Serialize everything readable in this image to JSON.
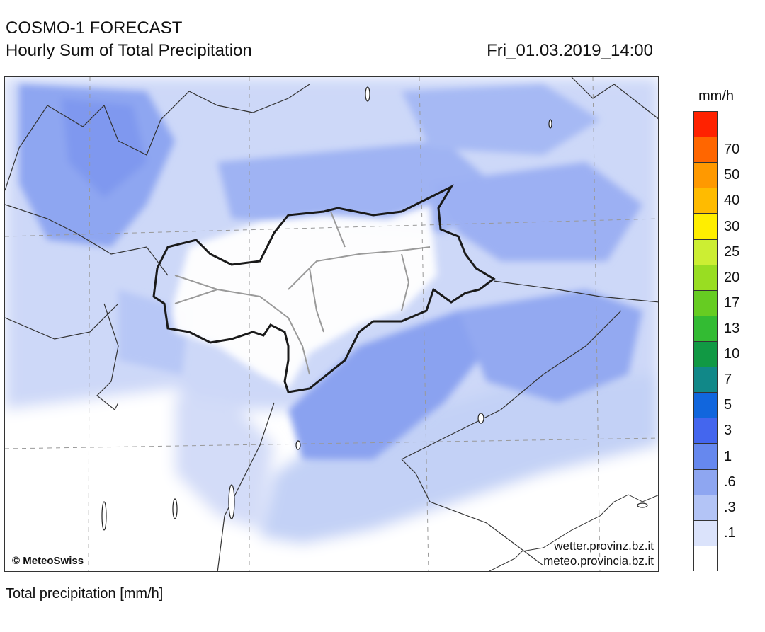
{
  "header": {
    "model_title": "COSMO-1 FORECAST",
    "product_title": "Hourly Sum of Total Precipitation",
    "valid_time": "Fri_01.03.2019_14:00"
  },
  "map": {
    "credit": "© MeteoSwiss",
    "source_line1": "wetter.provinz.bz.it",
    "source_line2": "meteo.provincia.bz.it"
  },
  "legend": {
    "unit": "mm/h",
    "classes": [
      {
        "label": "",
        "color": "#ff2200"
      },
      {
        "label": "70",
        "color": "#ff6600"
      },
      {
        "label": "50",
        "color": "#ff9900"
      },
      {
        "label": "40",
        "color": "#ffbb00"
      },
      {
        "label": "30",
        "color": "#ffee00"
      },
      {
        "label": "25",
        "color": "#ccee33"
      },
      {
        "label": "20",
        "color": "#99dd22"
      },
      {
        "label": "17",
        "color": "#66cc22"
      },
      {
        "label": "13",
        "color": "#33bb33"
      },
      {
        "label": "10",
        "color": "#119944"
      },
      {
        "label": "7",
        "color": "#118888"
      },
      {
        "label": "5",
        "color": "#1166dd"
      },
      {
        "label": "3",
        "color": "#4466ee"
      },
      {
        "label": "1",
        "color": "#6688ee"
      },
      {
        "label": ".6",
        "color": "#8ea6f1"
      },
      {
        "label": ".3",
        "color": "#b3c4f6"
      },
      {
        "label": ".1",
        "color": "#dbe3fb"
      },
      {
        "label": "",
        "color": "#ffffff"
      }
    ]
  },
  "footer": {
    "caption": "Total precipitation [mm/h]"
  }
}
